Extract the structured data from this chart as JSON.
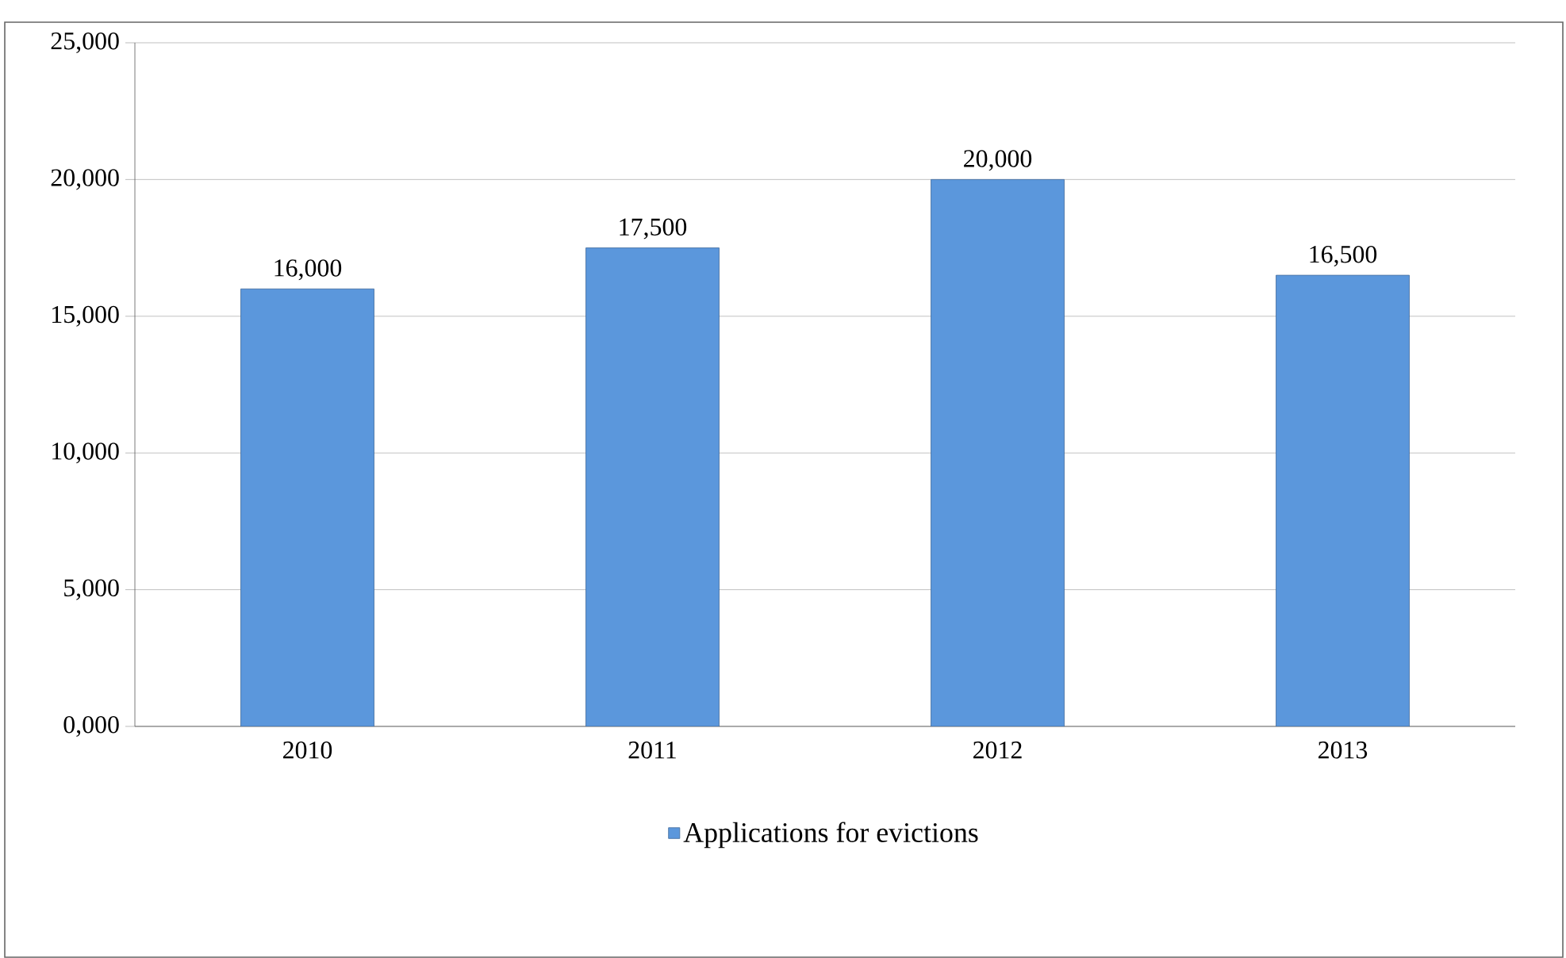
{
  "chart_data": {
    "type": "bar",
    "categories": [
      "2010",
      "2011",
      "2012",
      "2013"
    ],
    "series": [
      {
        "name": "Applications for evictions",
        "color": "#5b97dc",
        "values": [
          16000,
          17500,
          20000,
          16500
        ],
        "value_labels": [
          "16,000",
          "17,500",
          "20,000",
          "16,500"
        ]
      }
    ],
    "ylim": [
      0,
      25000
    ],
    "yticks": [
      {
        "value": 0,
        "label": "0,000"
      },
      {
        "value": 5000,
        "label": "5,000"
      },
      {
        "value": 10000,
        "label": "10,000"
      },
      {
        "value": 15000,
        "label": "15,000"
      },
      {
        "value": 20000,
        "label": "20,000"
      },
      {
        "value": 25000,
        "label": "25,000"
      }
    ],
    "grid": "y",
    "legend": "bottom"
  }
}
